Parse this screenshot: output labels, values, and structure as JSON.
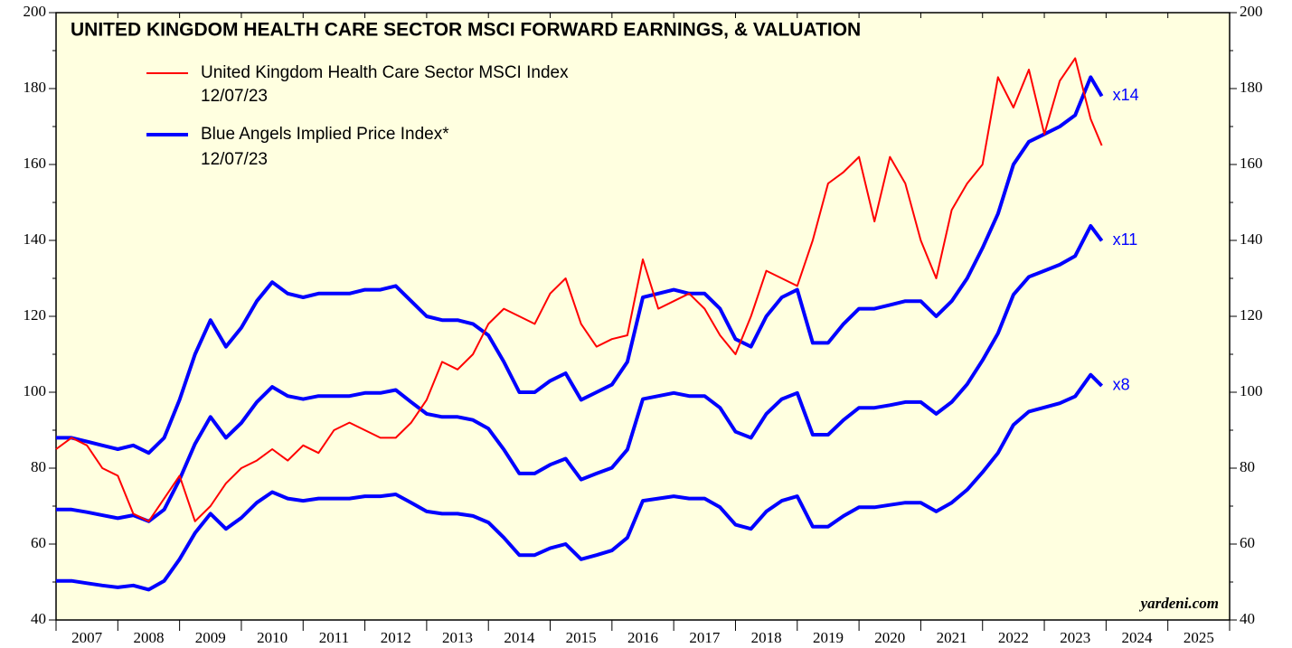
{
  "chart_data": {
    "type": "line",
    "title": "UNITED KINGDOM HEALTH CARE SECTOR MSCI FORWARD EARNINGS, & VALUATION",
    "x": [
      2007,
      2007.25,
      2007.5,
      2007.75,
      2008,
      2008.25,
      2008.5,
      2008.75,
      2009,
      2009.25,
      2009.5,
      2009.75,
      2010,
      2010.25,
      2010.5,
      2010.75,
      2011,
      2011.25,
      2011.5,
      2011.75,
      2012,
      2012.25,
      2012.5,
      2012.75,
      2013,
      2013.25,
      2013.5,
      2013.75,
      2014,
      2014.25,
      2014.5,
      2014.75,
      2015,
      2015.25,
      2015.5,
      2015.75,
      2016,
      2016.25,
      2016.5,
      2016.75,
      2017,
      2017.25,
      2017.5,
      2017.75,
      2018,
      2018.25,
      2018.5,
      2018.75,
      2019,
      2019.25,
      2019.5,
      2019.75,
      2020,
      2020.25,
      2020.5,
      2020.75,
      2021,
      2021.25,
      2021.5,
      2021.75,
      2022,
      2022.25,
      2022.5,
      2022.75,
      2023,
      2023.25,
      2023.5,
      2023.75,
      2023.93
    ],
    "series": [
      {
        "name": "United Kingdom Health Care Sector MSCI Index",
        "date": "12/07/23",
        "color": "#ff0000",
        "width": 2,
        "values": [
          85,
          88,
          86,
          80,
          78,
          68,
          66,
          72,
          78,
          66,
          70,
          76,
          80,
          82,
          85,
          82,
          86,
          84,
          90,
          92,
          90,
          88,
          88,
          92,
          98,
          108,
          106,
          110,
          118,
          122,
          120,
          118,
          126,
          130,
          118,
          112,
          114,
          115,
          135,
          122,
          124,
          126,
          122,
          115,
          110,
          120,
          132,
          130,
          128,
          140,
          155,
          158,
          162,
          145,
          162,
          155,
          140,
          130,
          148,
          155,
          160,
          183,
          175,
          185,
          168,
          182,
          188,
          172,
          165
        ]
      },
      {
        "name": "Blue Angels Implied Price Index*",
        "date": "12/07/23",
        "label": "x14",
        "color": "#0000ff",
        "width": 4,
        "values": [
          88,
          88,
          87,
          86,
          85,
          86,
          84,
          88,
          98,
          110,
          119,
          112,
          117,
          124,
          129,
          126,
          125,
          126,
          126,
          126,
          127,
          127,
          128,
          124,
          120,
          119,
          119,
          118,
          115,
          108,
          100,
          100,
          103,
          105,
          98,
          100,
          102,
          108,
          125,
          126,
          127,
          126,
          126,
          122,
          114,
          112,
          120,
          125,
          127,
          113,
          113,
          118,
          122,
          122,
          123,
          124,
          124,
          120,
          124,
          130,
          138,
          147,
          160,
          166,
          168,
          170,
          173,
          183,
          178
        ]
      },
      {
        "label": "x11",
        "color": "#0000ff",
        "width": 4,
        "values": [
          69.1,
          69.1,
          68.4,
          67.6,
          66.8,
          67.6,
          66.0,
          69.1,
          77.0,
          86.4,
          93.5,
          88.0,
          91.9,
          97.4,
          101.4,
          99.0,
          98.2,
          99.0,
          99.0,
          99.0,
          99.8,
          99.8,
          100.6,
          97.4,
          94.3,
          93.5,
          93.5,
          92.7,
          90.4,
          84.9,
          78.6,
          78.6,
          80.9,
          82.5,
          77.0,
          78.6,
          80.1,
          84.9,
          98.2,
          99.0,
          99.8,
          99.0,
          99.0,
          95.9,
          89.6,
          88.0,
          94.3,
          98.2,
          99.8,
          88.8,
          88.8,
          92.7,
          95.9,
          95.9,
          96.6,
          97.4,
          97.4,
          94.3,
          97.4,
          102.1,
          108.4,
          115.5,
          125.7,
          130.4,
          132.0,
          133.6,
          135.9,
          143.8,
          139.9
        ]
      },
      {
        "label": "x8",
        "color": "#0000ff",
        "width": 4,
        "values": [
          50.3,
          50.3,
          49.7,
          49.1,
          48.6,
          49.1,
          48.0,
          50.3,
          56.0,
          62.9,
          68.0,
          64.0,
          66.9,
          70.9,
          73.7,
          72.0,
          71.4,
          72.0,
          72.0,
          72.0,
          72.6,
          72.6,
          73.1,
          70.9,
          68.6,
          68.0,
          68.0,
          67.4,
          65.7,
          61.7,
          57.1,
          57.1,
          58.9,
          60.0,
          56.0,
          57.1,
          58.3,
          61.7,
          71.4,
          72.0,
          72.6,
          72.0,
          72.0,
          69.7,
          65.1,
          64.0,
          68.6,
          71.4,
          72.6,
          64.6,
          64.6,
          67.4,
          69.7,
          69.7,
          70.3,
          70.9,
          70.9,
          68.6,
          70.9,
          74.3,
          78.9,
          84.0,
          91.4,
          94.9,
          96.0,
          97.1,
          98.9,
          104.6,
          101.7
        ]
      }
    ],
    "xlim": [
      2007,
      2026
    ],
    "xticks": [
      2007,
      2008,
      2009,
      2010,
      2011,
      2012,
      2013,
      2014,
      2015,
      2016,
      2017,
      2018,
      2019,
      2020,
      2021,
      2022,
      2023,
      2024,
      2025,
      2026
    ],
    "year_labels": [
      "2007",
      "2008",
      "2009",
      "2010",
      "2011",
      "2012",
      "2013",
      "2014",
      "2015",
      "2016",
      "2017",
      "2018",
      "2019",
      "2020",
      "2021",
      "2022",
      "2023",
      "2024",
      "2025"
    ],
    "ylim": [
      40,
      200
    ],
    "yticks": [
      40,
      60,
      80,
      100,
      120,
      140,
      160,
      180,
      200
    ],
    "source": "yardeni.com"
  }
}
